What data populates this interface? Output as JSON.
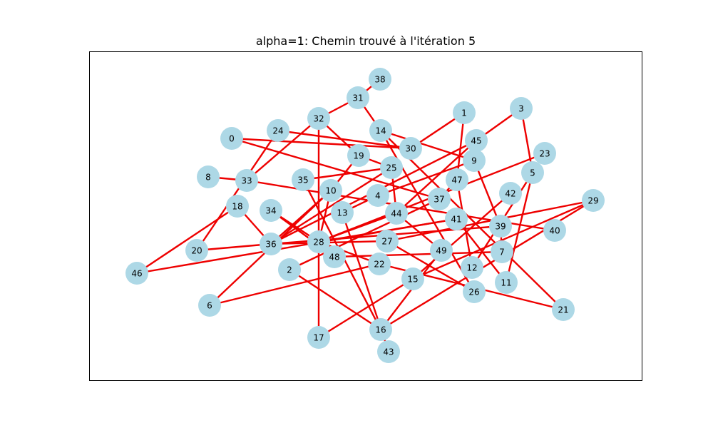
{
  "figure": {
    "title": "alpha=1: Chemin trouvé à l'itération 5"
  },
  "style": {
    "node_color": "#add8e6",
    "edge_color": "#ee0000",
    "frame_color": "#000000"
  },
  "graph": {
    "nodes": [
      "0",
      "1",
      "2",
      "3",
      "4",
      "5",
      "6",
      "7",
      "8",
      "9",
      "10",
      "11",
      "12",
      "13",
      "14",
      "15",
      "16",
      "17",
      "18",
      "19",
      "20",
      "21",
      "22",
      "23",
      "24",
      "25",
      "26",
      "27",
      "28",
      "29",
      "30",
      "31",
      "32",
      "33",
      "34",
      "35",
      "36",
      "37",
      "38",
      "39",
      "40",
      "41",
      "42",
      "43",
      "44",
      "45",
      "46",
      "47",
      "48",
      "49"
    ],
    "edges": [
      [
        "38",
        "31"
      ],
      [
        "31",
        "32"
      ],
      [
        "31",
        "14"
      ],
      [
        "32",
        "19"
      ],
      [
        "32",
        "17"
      ],
      [
        "32",
        "33"
      ],
      [
        "33",
        "8"
      ],
      [
        "33",
        "40"
      ],
      [
        "24",
        "30"
      ],
      [
        "24",
        "20"
      ],
      [
        "0",
        "30"
      ],
      [
        "0",
        "37"
      ],
      [
        "1",
        "30"
      ],
      [
        "1",
        "47"
      ],
      [
        "3",
        "5"
      ],
      [
        "3",
        "45"
      ],
      [
        "5",
        "11"
      ],
      [
        "5",
        "12"
      ],
      [
        "14",
        "26"
      ],
      [
        "14",
        "9"
      ],
      [
        "14",
        "21"
      ],
      [
        "19",
        "25"
      ],
      [
        "19",
        "10"
      ],
      [
        "25",
        "35"
      ],
      [
        "25",
        "44"
      ],
      [
        "25",
        "36"
      ],
      [
        "45",
        "44"
      ],
      [
        "45",
        "36"
      ],
      [
        "9",
        "4"
      ],
      [
        "9",
        "39"
      ],
      [
        "47",
        "12"
      ],
      [
        "47",
        "37"
      ],
      [
        "23",
        "28"
      ],
      [
        "42",
        "15"
      ],
      [
        "29",
        "16"
      ],
      [
        "29",
        "15"
      ],
      [
        "29",
        "27"
      ],
      [
        "35",
        "16"
      ],
      [
        "10",
        "28"
      ],
      [
        "10",
        "36"
      ],
      [
        "4",
        "13"
      ],
      [
        "13",
        "43"
      ],
      [
        "44",
        "49"
      ],
      [
        "44",
        "28"
      ],
      [
        "37",
        "2"
      ],
      [
        "41",
        "28"
      ],
      [
        "41",
        "11"
      ],
      [
        "39",
        "36"
      ],
      [
        "39",
        "7"
      ],
      [
        "34",
        "48"
      ],
      [
        "34",
        "28"
      ],
      [
        "18",
        "36"
      ],
      [
        "18",
        "46"
      ],
      [
        "46",
        "41"
      ],
      [
        "36",
        "27"
      ],
      [
        "27",
        "26"
      ],
      [
        "28",
        "22"
      ],
      [
        "6",
        "22"
      ],
      [
        "6",
        "10"
      ],
      [
        "48",
        "7"
      ],
      [
        "22",
        "21"
      ],
      [
        "20",
        "36"
      ],
      [
        "17",
        "15"
      ],
      [
        "49",
        "16"
      ],
      [
        "16",
        "2"
      ]
    ]
  }
}
